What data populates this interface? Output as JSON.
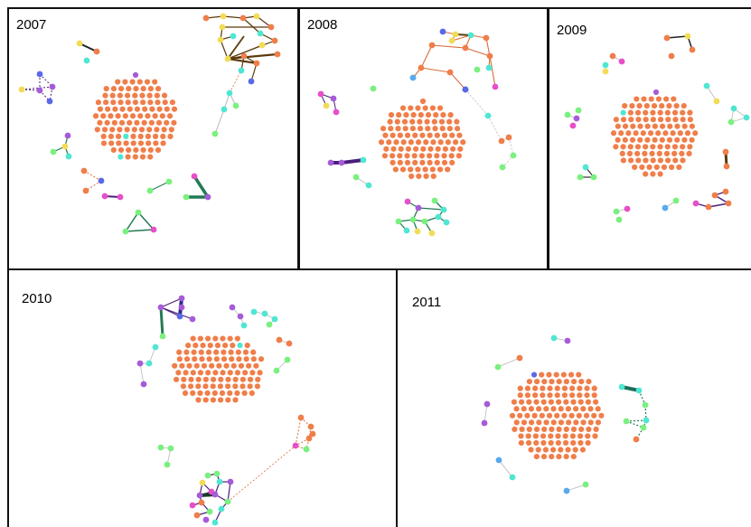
{
  "panels": [
    {
      "label": "2007"
    },
    {
      "label": "2008"
    },
    {
      "label": "2009"
    },
    {
      "label": "2010"
    },
    {
      "label": "2011"
    }
  ],
  "palette": [
    "#ef7e4a",
    "#4fe6d2",
    "#7af07e",
    "#e64fc8",
    "#a65bd8",
    "#f2dc55",
    "#5b68e8",
    "#58a9ee"
  ],
  "edge_colors": {
    "dark": "#5a3a0c",
    "green": "#237a53",
    "purple": "#4a1f7a",
    "orange": "#d96d3a",
    "gray": "#b8b8b8"
  }
}
